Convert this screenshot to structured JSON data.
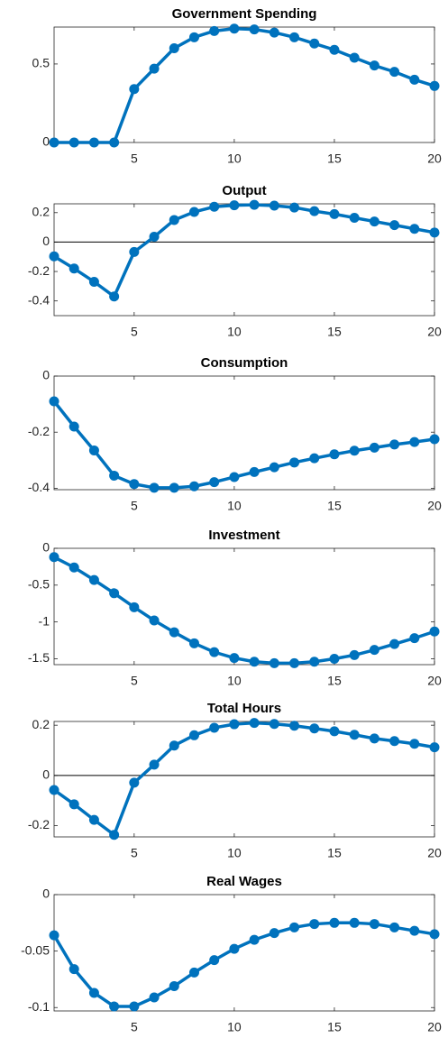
{
  "chart_data": [
    {
      "type": "line",
      "title": "Government Spending",
      "x": [
        1,
        2,
        3,
        4,
        5,
        6,
        7,
        8,
        9,
        10,
        11,
        12,
        13,
        14,
        15,
        16,
        17,
        18,
        19,
        20
      ],
      "series": [
        {
          "color": "#0072bd",
          "values": [
            0,
            0,
            0,
            0,
            0.34,
            0.47,
            0.6,
            0.67,
            0.71,
            0.725,
            0.72,
            0.7,
            0.67,
            0.63,
            0.59,
            0.54,
            0.49,
            0.45,
            0.4,
            0.36
          ]
        }
      ],
      "xlim": [
        1,
        20
      ],
      "xticks": [
        5,
        10,
        15,
        20
      ],
      "ylim": [
        0,
        0.735
      ],
      "yticks": [
        0,
        0.5
      ],
      "zero_line": false
    },
    {
      "type": "line",
      "title": "Output",
      "x": [
        1,
        2,
        3,
        4,
        5,
        6,
        7,
        8,
        9,
        10,
        11,
        12,
        13,
        14,
        15,
        16,
        17,
        18,
        19,
        20
      ],
      "series": [
        {
          "color": "#0072bd",
          "values": [
            -0.097,
            -0.18,
            -0.27,
            -0.37,
            -0.067,
            0.036,
            0.15,
            0.205,
            0.24,
            0.25,
            0.253,
            0.248,
            0.235,
            0.21,
            0.19,
            0.165,
            0.14,
            0.115,
            0.09,
            0.065
          ]
        }
      ],
      "xlim": [
        1,
        20
      ],
      "xticks": [
        5,
        10,
        15,
        20
      ],
      "ylim": [
        -0.5,
        0.26
      ],
      "yticks": [
        -0.4,
        -0.2,
        0,
        0.2
      ],
      "zero_line": true
    },
    {
      "type": "line",
      "title": "Consumption",
      "x": [
        1,
        2,
        3,
        4,
        5,
        6,
        7,
        8,
        9,
        10,
        11,
        12,
        13,
        14,
        15,
        16,
        17,
        18,
        19,
        20
      ],
      "series": [
        {
          "color": "#0072bd",
          "values": [
            -0.09,
            -0.18,
            -0.265,
            -0.355,
            -0.385,
            -0.398,
            -0.398,
            -0.393,
            -0.378,
            -0.36,
            -0.342,
            -0.325,
            -0.308,
            -0.293,
            -0.279,
            -0.266,
            -0.255,
            -0.244,
            -0.235,
            -0.225
          ]
        }
      ],
      "xlim": [
        1,
        20
      ],
      "xticks": [
        5,
        10,
        15,
        20
      ],
      "ylim": [
        -0.405,
        0
      ],
      "yticks": [
        -0.4,
        -0.2,
        0
      ],
      "zero_line": false
    },
    {
      "type": "line",
      "title": "Investment",
      "x": [
        1,
        2,
        3,
        4,
        5,
        6,
        7,
        8,
        9,
        10,
        11,
        12,
        13,
        14,
        15,
        16,
        17,
        18,
        19,
        20
      ],
      "series": [
        {
          "color": "#0072bd",
          "values": [
            -0.12,
            -0.26,
            -0.43,
            -0.61,
            -0.8,
            -0.98,
            -1.14,
            -1.29,
            -1.41,
            -1.49,
            -1.54,
            -1.56,
            -1.56,
            -1.54,
            -1.5,
            -1.45,
            -1.38,
            -1.3,
            -1.22,
            -1.13
          ]
        }
      ],
      "xlim": [
        1,
        20
      ],
      "xticks": [
        5,
        10,
        15,
        20
      ],
      "ylim": [
        -1.58,
        0
      ],
      "yticks": [
        -1.5,
        -1,
        -0.5,
        0
      ],
      "zero_line": false
    },
    {
      "type": "line",
      "title": "Total Hours",
      "x": [
        1,
        2,
        3,
        4,
        5,
        6,
        7,
        8,
        9,
        10,
        11,
        12,
        13,
        14,
        15,
        16,
        17,
        18,
        19,
        20
      ],
      "series": [
        {
          "color": "#0072bd",
          "values": [
            -0.058,
            -0.115,
            -0.177,
            -0.237,
            -0.029,
            0.043,
            0.119,
            0.16,
            0.19,
            0.204,
            0.209,
            0.205,
            0.198,
            0.187,
            0.176,
            0.162,
            0.147,
            0.137,
            0.126,
            0.112
          ]
        }
      ],
      "xlim": [
        1,
        20
      ],
      "xticks": [
        5,
        10,
        15,
        20
      ],
      "ylim": [
        -0.245,
        0.215
      ],
      "yticks": [
        -0.2,
        0,
        0.2
      ],
      "zero_line": true
    },
    {
      "type": "line",
      "title": "Real Wages",
      "x": [
        1,
        2,
        3,
        4,
        5,
        6,
        7,
        8,
        9,
        10,
        11,
        12,
        13,
        14,
        15,
        16,
        17,
        18,
        19,
        20
      ],
      "series": [
        {
          "color": "#0072bd",
          "values": [
            -0.036,
            -0.066,
            -0.087,
            -0.099,
            -0.099,
            -0.091,
            -0.081,
            -0.069,
            -0.058,
            -0.048,
            -0.04,
            -0.034,
            -0.029,
            -0.026,
            -0.025,
            -0.025,
            -0.026,
            -0.029,
            -0.032,
            -0.035
          ]
        }
      ],
      "xlim": [
        1,
        20
      ],
      "xticks": [
        5,
        10,
        15,
        20
      ],
      "ylim": [
        -0.103,
        0
      ],
      "yticks": [
        -0.1,
        -0.05,
        0
      ],
      "zero_line": false
    }
  ]
}
